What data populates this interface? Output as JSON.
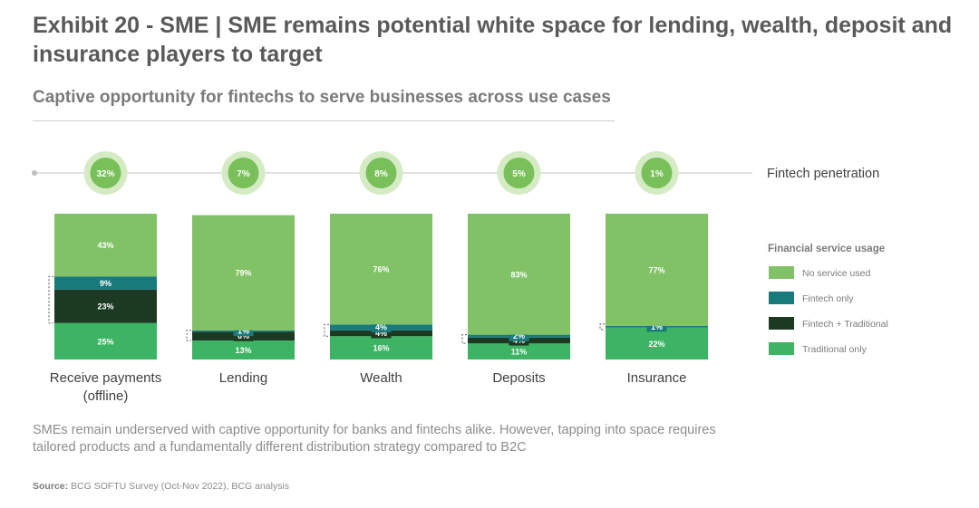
{
  "header": {
    "title": "Exhibit 20 - SME | SME remains potential white space for lending, wealth, deposit and insurance players to target",
    "subtitle": "Captive opportunity for fintechs to serve businesses across use cases"
  },
  "penetration_label": "Fintech penetration",
  "legend_title": "Financial service usage",
  "footer": {
    "note": "SMEs remain underserved with captive opportunity for banks and fintechs alike. However, tapping into space requires tailored products and a fundamentally different distribution strategy compared to B2C",
    "source_label": "Source:",
    "source_text": "BCG SOFTU Survey (Oct-Nov 2022), BCG analysis"
  },
  "colors": {
    "traditional_only": "#3cb463",
    "fintech_traditional": "#1c3a22",
    "fintech_only": "#197a7c",
    "no_service": "#82c266",
    "pen_ring": "#d4ebc4",
    "pen_core": "#79c05a",
    "axis_line": "#d9d9d9"
  },
  "chart_data": {
    "type": "bar",
    "stacked": true,
    "categories": [
      "Receive payments (offline)",
      "Lending",
      "Wealth",
      "Deposits",
      "Insurance"
    ],
    "category_lines": [
      [
        "Receive payments",
        "(offline)"
      ],
      [
        "Lending"
      ],
      [
        "Wealth"
      ],
      [
        "Deposits"
      ],
      [
        "Insurance"
      ]
    ],
    "series": [
      {
        "name": "Traditional only",
        "color_key": "traditional_only",
        "values": [
          25,
          13,
          16,
          11,
          22
        ],
        "labels": [
          "25%",
          "13%",
          "16%",
          "11%",
          "22%"
        ]
      },
      {
        "name": "Fintech + Traditional",
        "color_key": "fintech_traditional",
        "values": [
          23,
          6,
          4,
          4,
          0
        ],
        "labels": [
          "23%",
          "6%",
          "4%",
          "4%",
          ""
        ]
      },
      {
        "name": "Fintech only",
        "color_key": "fintech_only",
        "values": [
          9,
          1,
          4,
          2,
          1
        ],
        "labels": [
          "9%",
          "1%",
          "4%",
          "2%",
          "1%"
        ]
      },
      {
        "name": "No service used",
        "color_key": "no_service",
        "values": [
          43,
          79,
          76,
          83,
          77
        ],
        "labels": [
          "43%",
          "79%",
          "76%",
          "83%",
          "77%"
        ]
      }
    ],
    "legend_order": [
      "No service used",
      "Fintech only",
      "Fintech + Traditional",
      "Traditional only"
    ],
    "fintech_penetration": [
      "32%",
      "7%",
      "8%",
      "5%",
      "1%"
    ],
    "ylim": [
      0,
      100
    ],
    "legend_position": "right"
  }
}
